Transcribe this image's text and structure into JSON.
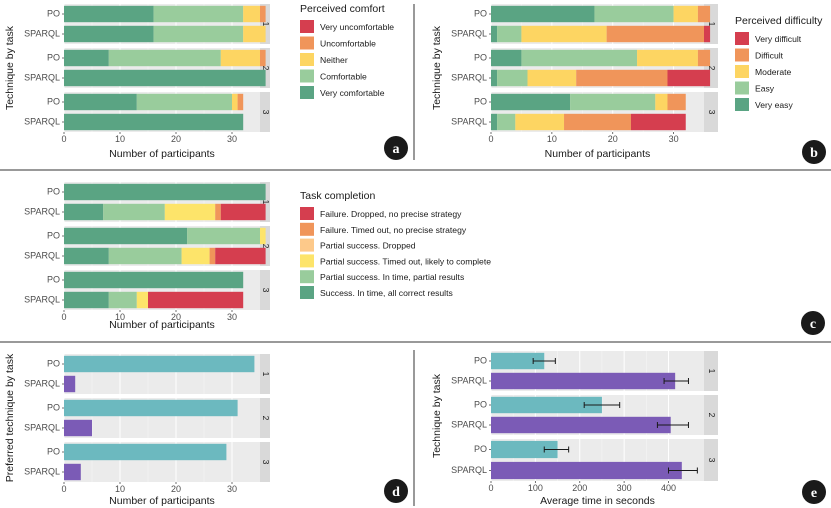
{
  "chart_data": [
    {
      "id": "a",
      "type": "stacked-bar-horizontal",
      "badge": "a",
      "ylabel": "Technique by task",
      "xlabel": "Number of participants",
      "xlim": [
        0,
        35
      ],
      "xticks": [
        0,
        10,
        20,
        30
      ],
      "facets": [
        "1",
        "2",
        "3"
      ],
      "techniques": [
        "PO",
        "SPARQL"
      ],
      "legend_title": "Perceived comfort",
      "categories": [
        "Very uncomfortable",
        "Uncomfortable",
        "Neither",
        "Comfortable",
        "Very comfortable"
      ],
      "colors": [
        "#d53e4f",
        "#f0955a",
        "#fdd562",
        "#99cc9c",
        "#5aa483"
      ],
      "stack_order": [
        4,
        3,
        2,
        1,
        0
      ],
      "values": {
        "1": {
          "PO": [
            0,
            1,
            3,
            16,
            16
          ],
          "SPARQL": [
            0,
            0,
            4,
            16,
            16
          ]
        },
        "2": {
          "PO": [
            0,
            1,
            7,
            20,
            8
          ],
          "SPARQL": [
            0,
            0,
            0,
            0,
            36
          ]
        },
        "3": {
          "PO": [
            0,
            1,
            1,
            17,
            13
          ],
          "SPARQL": [
            0,
            0,
            0,
            0,
            32
          ]
        }
      }
    },
    {
      "id": "b",
      "type": "stacked-bar-horizontal",
      "badge": "b",
      "ylabel": "Technique by task",
      "xlabel": "Number of participants",
      "xlim": [
        0,
        35
      ],
      "xticks": [
        0,
        10,
        20,
        30
      ],
      "facets": [
        "1",
        "2",
        "3"
      ],
      "techniques": [
        "PO",
        "SPARQL"
      ],
      "legend_title": "Perceived difficulty",
      "categories": [
        "Very difficult",
        "Difficult",
        "Moderate",
        "Easy",
        "Very easy"
      ],
      "colors": [
        "#d53e4f",
        "#f0955a",
        "#fdd562",
        "#99cc9c",
        "#5aa483"
      ],
      "stack_order": [
        4,
        3,
        2,
        1,
        0
      ],
      "values": {
        "1": {
          "PO": [
            0,
            2,
            4,
            13,
            17
          ],
          "SPARQL": [
            1,
            16,
            14,
            4,
            1
          ]
        },
        "2": {
          "PO": [
            0,
            2,
            10,
            19,
            5
          ],
          "SPARQL": [
            7,
            15,
            8,
            5,
            1
          ]
        },
        "3": {
          "PO": [
            0,
            3,
            2,
            14,
            13
          ],
          "SPARQL": [
            9,
            11,
            8,
            3,
            1
          ]
        }
      }
    },
    {
      "id": "c",
      "type": "stacked-bar-horizontal",
      "badge": "c",
      "ylabel": "",
      "xlabel": "Number of participants",
      "xlim": [
        0,
        35
      ],
      "xticks": [
        0,
        10,
        20,
        30
      ],
      "facets": [
        "1",
        "2",
        "3"
      ],
      "techniques": [
        "PO",
        "SPARQL"
      ],
      "legend_title": "Task completion",
      "categories": [
        "Failure. Dropped, no precise strategy",
        "Failure. Timed out, no precise strategy",
        "Partial success. Dropped",
        "Partial success. Timed out, likely to complete",
        "Partial success. In time, partial results",
        "Success. In time, all correct results"
      ],
      "colors": [
        "#d53e4f",
        "#f0955a",
        "#fdc98a",
        "#fde46a",
        "#99cc9c",
        "#5aa483"
      ],
      "stack_order": [
        5,
        4,
        3,
        2,
        1,
        0
      ],
      "values": {
        "1": {
          "PO": [
            0,
            0,
            0,
            0,
            0,
            36
          ],
          "SPARQL": [
            8,
            1,
            0,
            9,
            11,
            7
          ]
        },
        "2": {
          "PO": [
            0,
            0,
            0,
            1,
            13,
            22
          ],
          "SPARQL": [
            9,
            1,
            0,
            5,
            13,
            8
          ]
        },
        "3": {
          "PO": [
            0,
            0,
            0,
            0,
            0,
            32
          ],
          "SPARQL": [
            17,
            0,
            0,
            2,
            5,
            8
          ]
        }
      }
    },
    {
      "id": "d",
      "type": "bar-horizontal",
      "badge": "d",
      "ylabel": "Preferred technique by task",
      "xlabel": "Number of participants",
      "xlim": [
        0,
        35
      ],
      "xticks": [
        0,
        10,
        20,
        30
      ],
      "facets": [
        "1",
        "2",
        "3"
      ],
      "techniques": [
        "PO",
        "SPARQL"
      ],
      "colors": {
        "PO": "#6cb9bf",
        "SPARQL": "#7b5bb6"
      },
      "values": {
        "1": {
          "PO": 34,
          "SPARQL": 2
        },
        "2": {
          "PO": 31,
          "SPARQL": 5
        },
        "3": {
          "PO": 29,
          "SPARQL": 3
        }
      }
    },
    {
      "id": "e",
      "type": "bar-horizontal-errorbars",
      "badge": "e",
      "ylabel": "Technique by task",
      "xlabel": "Average time in seconds",
      "xlim": [
        0,
        480
      ],
      "xticks": [
        0,
        100,
        200,
        300,
        400
      ],
      "facets": [
        "1",
        "2",
        "3"
      ],
      "techniques": [
        "PO",
        "SPARQL"
      ],
      "colors": {
        "PO": "#6cb9bf",
        "SPARQL": "#7b5bb6"
      },
      "values": {
        "1": {
          "PO": 120,
          "SPARQL": 415
        },
        "2": {
          "PO": 250,
          "SPARQL": 405
        },
        "3": {
          "PO": 150,
          "SPARQL": 430
        }
      },
      "errors": {
        "1": {
          "PO": [
            95,
            145
          ],
          "SPARQL": [
            390,
            445
          ]
        },
        "2": {
          "PO": [
            210,
            290
          ],
          "SPARQL": [
            375,
            445
          ]
        },
        "3": {
          "PO": [
            120,
            175
          ],
          "SPARQL": [
            400,
            465
          ]
        }
      }
    }
  ]
}
